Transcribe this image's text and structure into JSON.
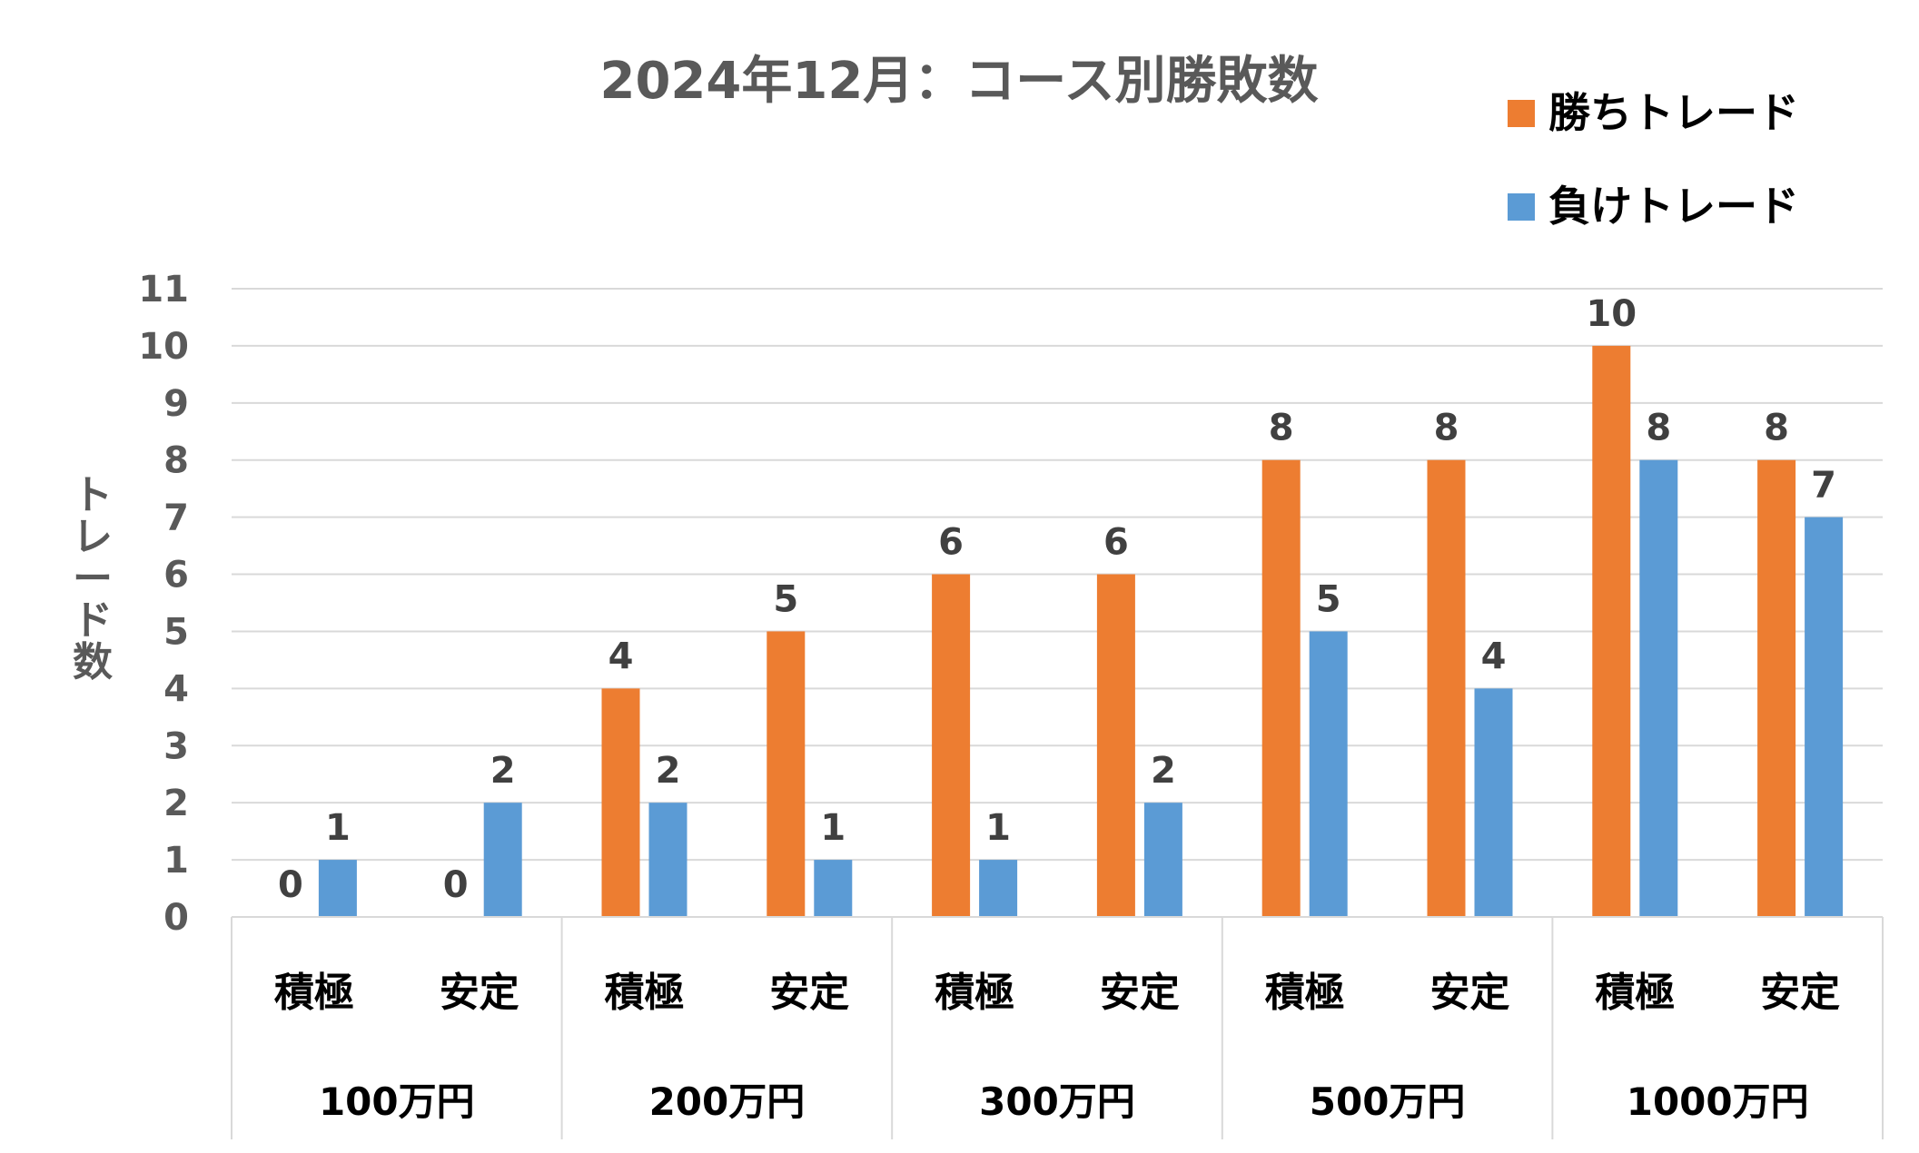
{
  "chart_data": {
    "type": "bar",
    "title": "2024年12月：コース別勝敗数",
    "ylabel": "トレード数",
    "ylim": [
      0,
      11
    ],
    "yticks": [
      0,
      1,
      2,
      3,
      4,
      5,
      6,
      7,
      8,
      9,
      10,
      11
    ],
    "grid": true,
    "legend_position": "top-right",
    "groups": [
      "100万円",
      "200万円",
      "300万円",
      "500万円",
      "1000万円"
    ],
    "categories": [
      "積極",
      "安定",
      "積極",
      "安定",
      "積極",
      "安定",
      "積極",
      "安定",
      "積極",
      "安定"
    ],
    "series": [
      {
        "name": "勝ちトレード",
        "color": "#ED7D31",
        "values": [
          0,
          0,
          4,
          5,
          6,
          6,
          8,
          8,
          10,
          8
        ]
      },
      {
        "name": "負けトレード",
        "color": "#5B9BD5",
        "values": [
          1,
          2,
          2,
          1,
          1,
          2,
          5,
          4,
          8,
          7
        ]
      }
    ]
  }
}
